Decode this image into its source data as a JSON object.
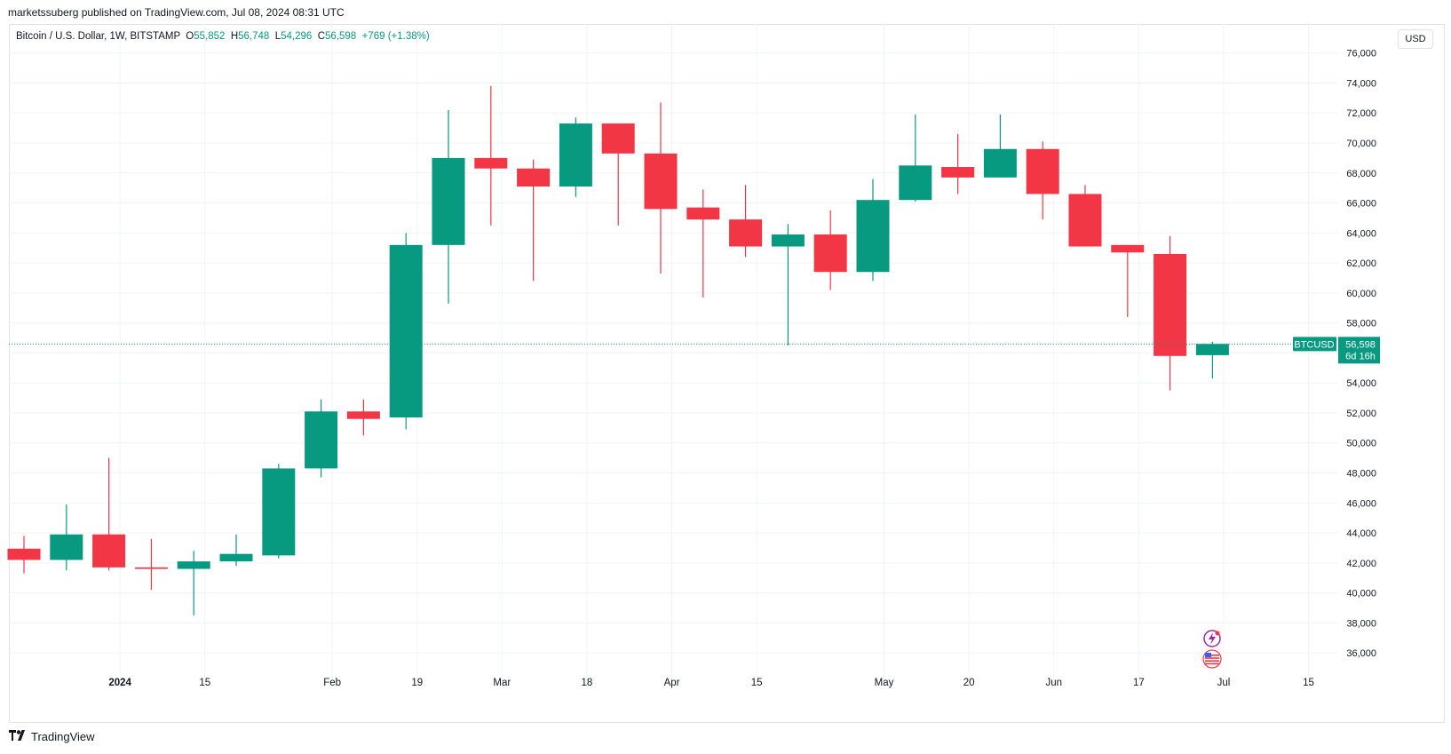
{
  "header": {
    "published": "marketssuberg published on TradingView.com, Jul 08, 2024 08:31 UTC"
  },
  "legend": {
    "symbol_line": "Bitcoin / U.S. Dollar, 1W, BITSTAMP",
    "open_label": "O",
    "open": "55,852",
    "high_label": "H",
    "high": "56,748",
    "low_label": "L",
    "low": "54,296",
    "close_label": "C",
    "close": "56,598",
    "change": "+769 (+1.38%)"
  },
  "toolbar": {
    "currency": "USD"
  },
  "price_tag": {
    "symbol": "BTCUSD",
    "price": "56,598",
    "countdown": "6d 16h"
  },
  "footer": {
    "brand": "TradingView",
    "logo_icon": "tradingview-logo-icon"
  },
  "icons": {
    "flash": "lightning-icon",
    "flag": "us-flag-icon"
  },
  "colors": {
    "up": "#089981",
    "down": "#f23645",
    "grid": "#f0f3fa",
    "last_price_line": "#089981"
  },
  "chart_data": {
    "type": "candlestick",
    "symbol": "Bitcoin / U.S. Dollar",
    "interval": "1W",
    "exchange": "BITSTAMP",
    "ylim": [
      35000,
      76500
    ],
    "y_ticks": [
      36000,
      38000,
      40000,
      42000,
      44000,
      46000,
      48000,
      50000,
      52000,
      54000,
      56000,
      58000,
      60000,
      62000,
      64000,
      66000,
      68000,
      70000,
      72000,
      74000,
      76000
    ],
    "y_tick_labels": [
      "36,000",
      "38,000",
      "40,000",
      "42,000",
      "44,000",
      "46,000",
      "48,000",
      "50,000",
      "52,000",
      "54,000",
      "56,000",
      "58,000",
      "60,000",
      "62,000",
      "64,000",
      "66,000",
      "68,000",
      "70,000",
      "72,000",
      "74,000",
      "76,000"
    ],
    "x_labels": [
      {
        "label": "2024",
        "week": 1.3,
        "bold": true
      },
      {
        "label": "15",
        "week": 3.3
      },
      {
        "label": "Feb",
        "week": 6.3
      },
      {
        "label": "19",
        "week": 8.3
      },
      {
        "label": "Mar",
        "week": 10.3
      },
      {
        "label": "18",
        "week": 12.3
      },
      {
        "label": "Apr",
        "week": 14.3
      },
      {
        "label": "15",
        "week": 16.3
      },
      {
        "label": "May",
        "week": 19.3
      },
      {
        "label": "20",
        "week": 21.3
      },
      {
        "label": "Jun",
        "week": 23.3
      },
      {
        "label": "17",
        "week": 25.3
      },
      {
        "label": "Jul",
        "week": 27.3
      },
      {
        "label": "15",
        "week": 29.3
      }
    ],
    "candles": [
      {
        "o": 42950,
        "h": 43800,
        "l": 41300,
        "c": 42200
      },
      {
        "o": 42200,
        "h": 45900,
        "l": 41500,
        "c": 43900
      },
      {
        "o": 43900,
        "h": 49000,
        "l": 41500,
        "c": 41700
      },
      {
        "o": 41700,
        "h": 43600,
        "l": 40200,
        "c": 41600
      },
      {
        "o": 41600,
        "h": 42800,
        "l": 38500,
        "c": 42100
      },
      {
        "o": 42100,
        "h": 43900,
        "l": 41800,
        "c": 42600
      },
      {
        "o": 42500,
        "h": 48600,
        "l": 42300,
        "c": 48300
      },
      {
        "o": 48300,
        "h": 52900,
        "l": 47700,
        "c": 52100
      },
      {
        "o": 52100,
        "h": 52900,
        "l": 50500,
        "c": 51600
      },
      {
        "o": 51700,
        "h": 64000,
        "l": 50900,
        "c": 63200
      },
      {
        "o": 63200,
        "h": 72200,
        "l": 59300,
        "c": 69000
      },
      {
        "o": 69000,
        "h": 73800,
        "l": 64500,
        "c": 68300
      },
      {
        "o": 68300,
        "h": 68900,
        "l": 60800,
        "c": 67100
      },
      {
        "o": 67100,
        "h": 71700,
        "l": 66400,
        "c": 71300
      },
      {
        "o": 71300,
        "h": 71300,
        "l": 64500,
        "c": 69300
      },
      {
        "o": 69300,
        "h": 72700,
        "l": 61300,
        "c": 65600
      },
      {
        "o": 65700,
        "h": 66900,
        "l": 59700,
        "c": 64900
      },
      {
        "o": 64900,
        "h": 67200,
        "l": 62400,
        "c": 63100
      },
      {
        "o": 63100,
        "h": 64600,
        "l": 56500,
        "c": 63900
      },
      {
        "o": 63900,
        "h": 65500,
        "l": 60200,
        "c": 61400
      },
      {
        "o": 61400,
        "h": 67600,
        "l": 60800,
        "c": 66200
      },
      {
        "o": 66200,
        "h": 71900,
        "l": 66100,
        "c": 68500
      },
      {
        "o": 68400,
        "h": 70600,
        "l": 66600,
        "c": 67700
      },
      {
        "o": 67700,
        "h": 71900,
        "l": 67700,
        "c": 69600
      },
      {
        "o": 69600,
        "h": 70100,
        "l": 64900,
        "c": 66600
      },
      {
        "o": 66600,
        "h": 67200,
        "l": 63100,
        "c": 63100
      },
      {
        "o": 63200,
        "h": 63200,
        "l": 58400,
        "c": 62700
      },
      {
        "o": 62600,
        "h": 63800,
        "l": 53500,
        "c": 55800
      },
      {
        "o": 55852,
        "h": 56748,
        "l": 54296,
        "c": 56598
      }
    ]
  }
}
